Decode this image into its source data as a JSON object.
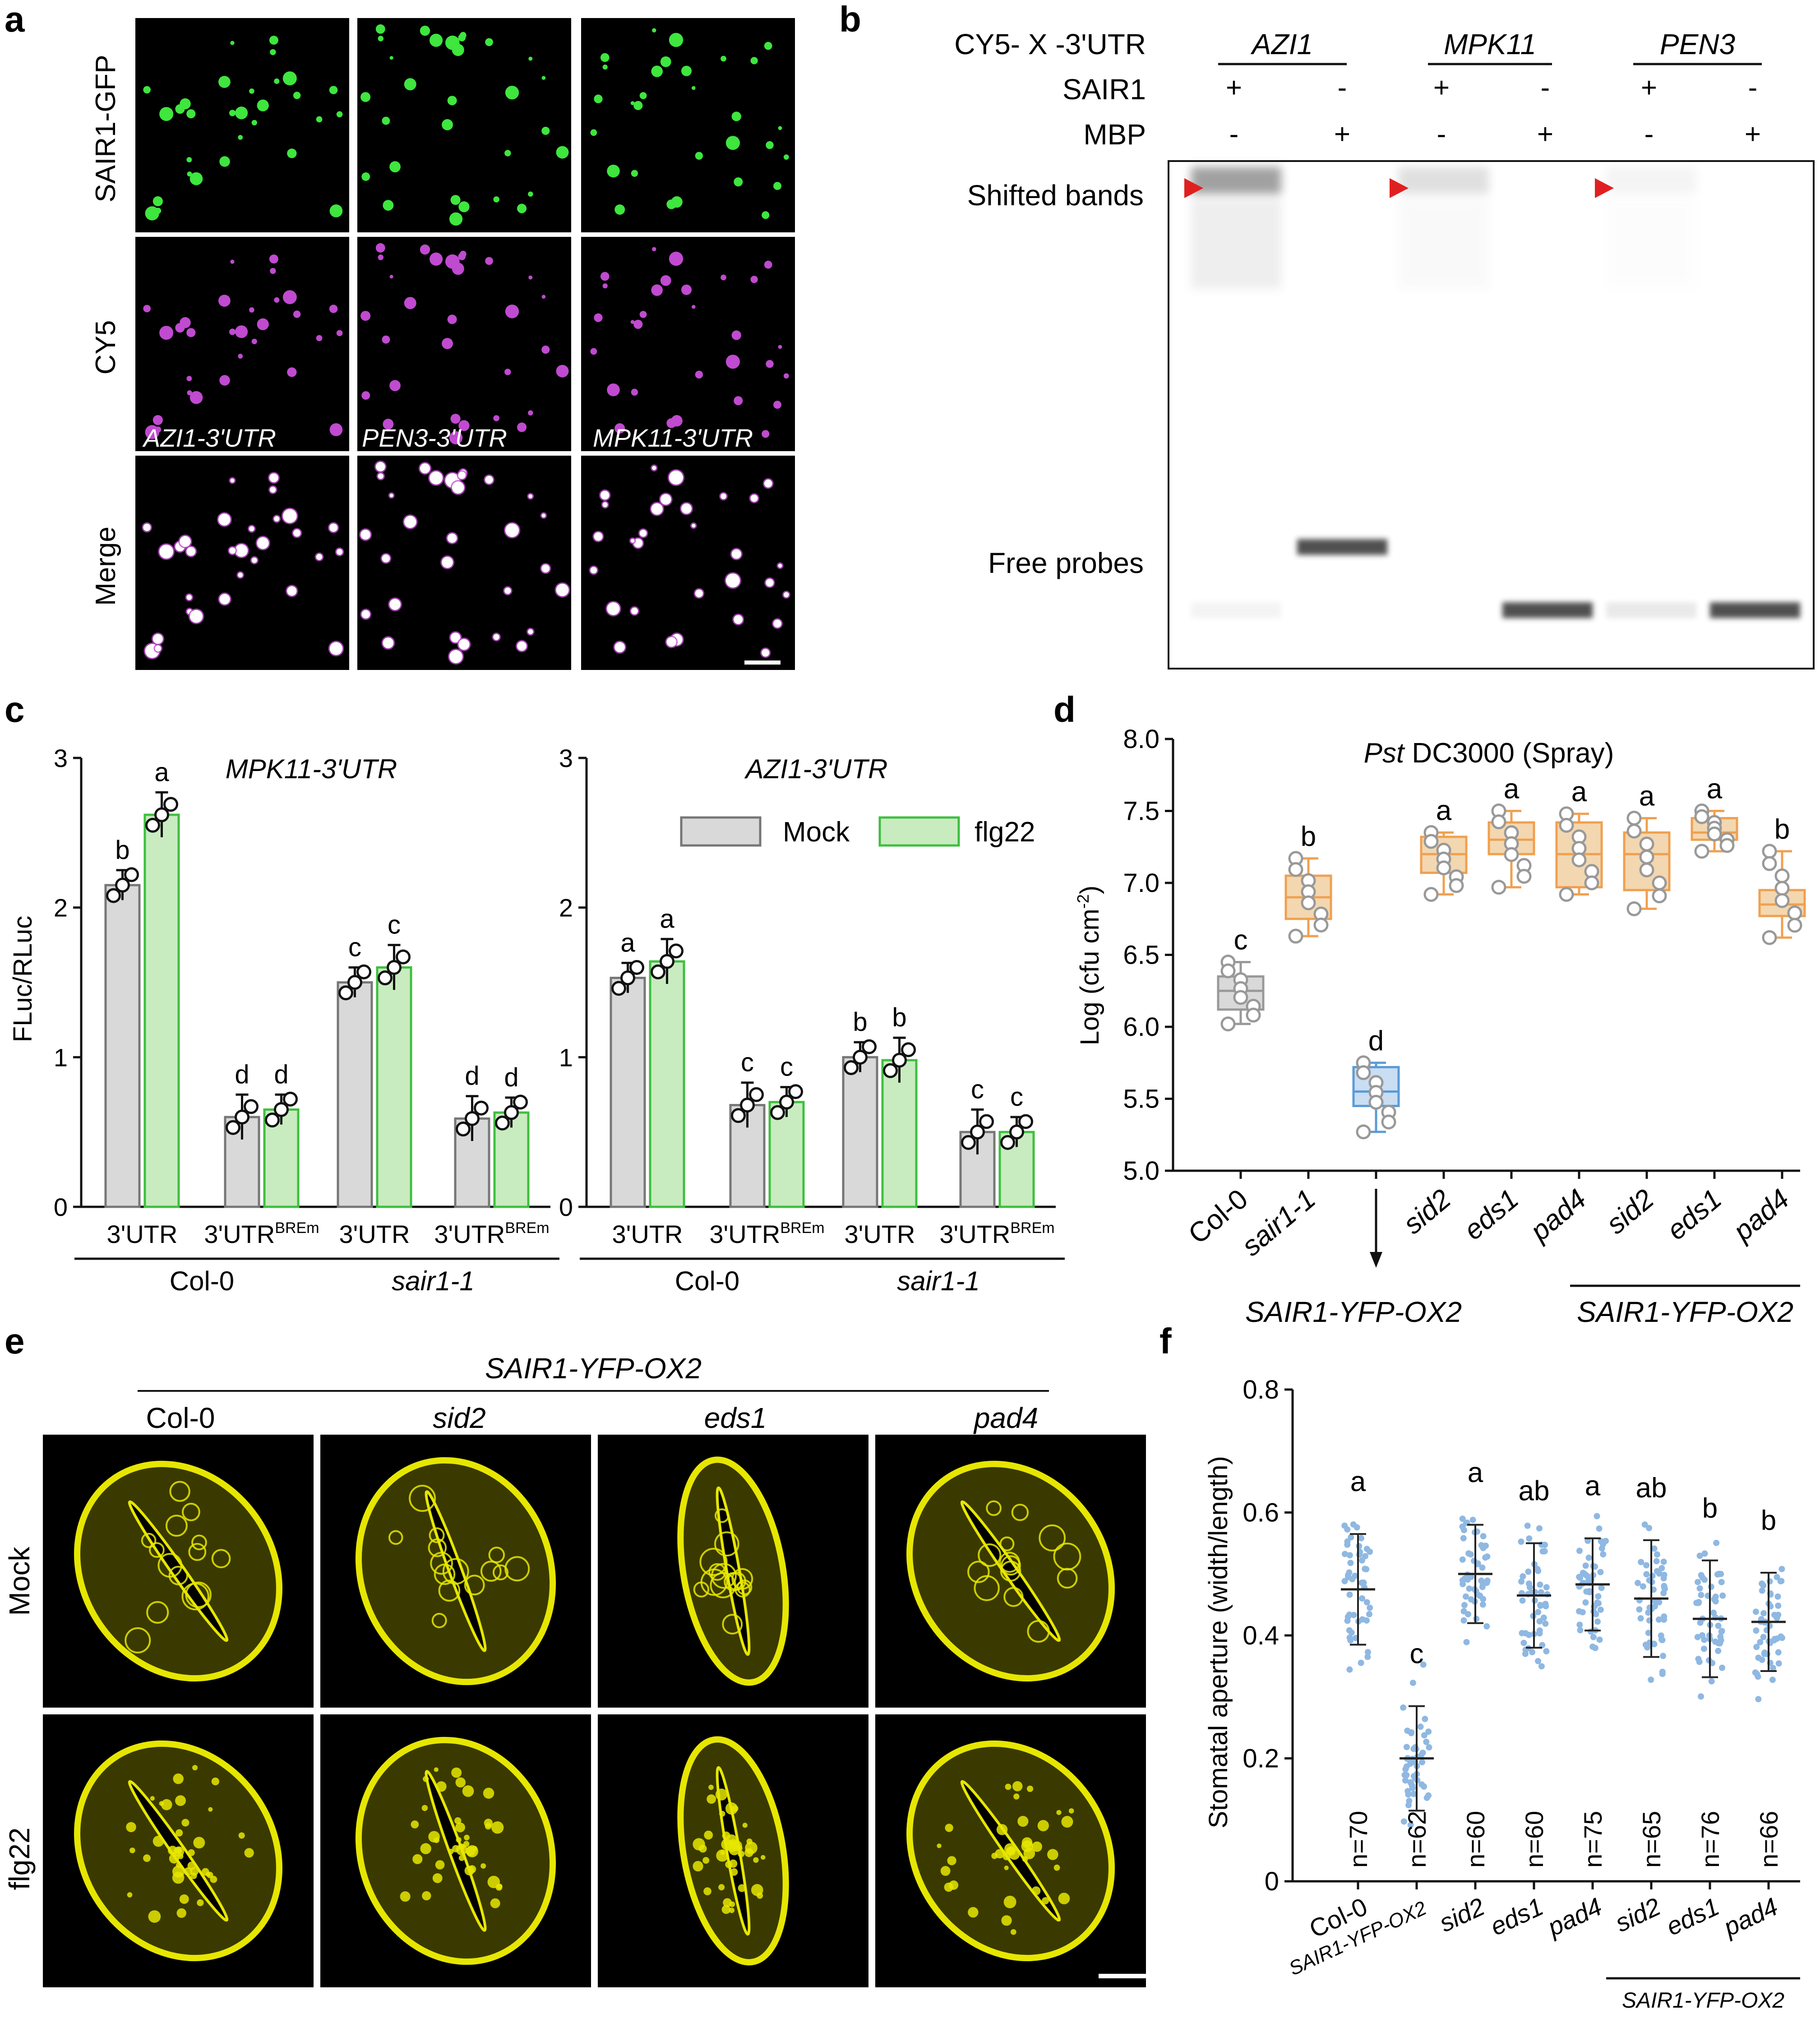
{
  "panel_letters": {
    "a": "a",
    "b": "b",
    "c": "c",
    "d": "d",
    "e": "e",
    "f": "f"
  },
  "colors": {
    "green": "#3ee63e",
    "magenta": "#c04ad0",
    "yellow": "#e6e600",
    "mock_bar": "#d9d9d9",
    "flg22_bar": "#c8ecc0",
    "flg22_edge": "#3fbf3f",
    "orange_box": "#f3d7b0",
    "orange_edge": "#f0a050",
    "blue_box": "#c9ddf3",
    "blue_point": "#8fb8e2",
    "arrow_red": "#e02020"
  },
  "panel_a": {
    "rows": [
      "SAIR1-GFP",
      "CY5",
      "Merge"
    ],
    "columns": [
      "AZI1-3'UTR",
      "PEN3-3'UTR",
      "MPK11-3'UTR"
    ]
  },
  "panel_b": {
    "header": "CY5- X -3'UTR",
    "genes": [
      "AZI1",
      "MPK11",
      "PEN3"
    ],
    "row_sair1": "SAIR1",
    "row_mbp": "MBP",
    "sair1_signs": [
      "+",
      "-",
      "+",
      "-",
      "+",
      "-"
    ],
    "mbp_signs": [
      "-",
      "+",
      "-",
      "+",
      "-",
      "+"
    ],
    "label_shifted": "Shifted bands",
    "label_free": "Free probes"
  },
  "panel_c": {
    "ylabel": "FLuc/RLuc",
    "legend": [
      "Mock",
      "flg22"
    ],
    "xcats": [
      "3'UTR",
      "3'UTR",
      "3'UTR",
      "3'UTR"
    ],
    "superscript": "BREm",
    "groups": [
      "Col-0",
      "sair1-1"
    ],
    "yticks": [
      "0",
      "1",
      "2",
      "3"
    ]
  },
  "chart_data": [
    {
      "type": "bar",
      "title": "MPK11-3'UTR",
      "ylabel": "FLuc/RLuc",
      "ylim": [
        0,
        3
      ],
      "categories": [
        "Col-0 3'UTR",
        "Col-0 3'UTR BREm",
        "sair1-1 3'UTR",
        "sair1-1 3'UTR BREm"
      ],
      "series": [
        {
          "name": "Mock",
          "values": [
            2.15,
            0.6,
            1.5,
            0.59
          ],
          "letters": [
            "b",
            "d",
            "c",
            "d"
          ]
        },
        {
          "name": "flg22",
          "values": [
            2.62,
            0.65,
            1.6,
            0.63
          ],
          "letters": [
            "a",
            "d",
            "c",
            "d"
          ]
        }
      ]
    },
    {
      "type": "bar",
      "title": "AZI1-3'UTR",
      "ylabel": "",
      "ylim": [
        0,
        3
      ],
      "categories": [
        "Col-0 3'UTR",
        "Col-0 3'UTR BREm",
        "sair1-1 3'UTR",
        "sair1-1 3'UTR BREm"
      ],
      "series": [
        {
          "name": "Mock",
          "values": [
            1.53,
            0.68,
            1.0,
            0.5
          ],
          "letters": [
            "a",
            "c",
            "b",
            "c"
          ]
        },
        {
          "name": "flg22",
          "values": [
            1.64,
            0.7,
            0.98,
            0.5
          ],
          "letters": [
            "a",
            "c",
            "b",
            "c"
          ]
        }
      ]
    },
    {
      "type": "box",
      "title": "Pst DC3000 (Spray)",
      "ylabel": "Log (cfu cm-2)",
      "ylim": [
        5.0,
        8.0
      ],
      "yticks": [
        "5.0",
        "5.5",
        "6.0",
        "6.5",
        "7.0",
        "7.5",
        "8.0"
      ],
      "categories": [
        "Col-0",
        "sair1-1",
        "SAIR1-YFP-OX2",
        "sid2",
        "eds1",
        "pad4",
        "sid2",
        "eds1",
        "pad4"
      ],
      "medians": [
        6.25,
        6.9,
        5.55,
        7.2,
        7.3,
        7.2,
        7.2,
        7.35,
        6.85
      ],
      "q1": [
        6.12,
        6.75,
        5.45,
        7.07,
        7.2,
        6.97,
        6.95,
        7.3,
        6.77
      ],
      "q3": [
        6.35,
        7.05,
        5.72,
        7.32,
        7.42,
        7.42,
        7.35,
        7.45,
        6.95
      ],
      "min": [
        6.02,
        6.63,
        5.27,
        6.92,
        6.97,
        6.92,
        6.82,
        7.22,
        6.62
      ],
      "max": [
        6.45,
        7.17,
        5.75,
        7.35,
        7.5,
        7.48,
        7.45,
        7.5,
        7.22
      ],
      "letters": [
        "c",
        "b",
        "d",
        "a",
        "a",
        "a",
        "a",
        "a",
        "b"
      ],
      "group_label_1": "SAIR1-YFP-OX2",
      "group_label_2": "SAIR1-YFP-OX2"
    },
    {
      "type": "scatter",
      "ylabel": "Stomatal aperture (width/length)",
      "ylim": [
        0,
        0.8
      ],
      "yticks": [
        "0",
        "0.2",
        "0.4",
        "0.6",
        "0.8"
      ],
      "categories": [
        "Col-0",
        "SAIR1-YFP-OX2",
        "sid2",
        "eds1",
        "pad4",
        "sid2",
        "eds1",
        "pad4"
      ],
      "means": [
        0.475,
        0.2,
        0.5,
        0.465,
        0.483,
        0.46,
        0.427,
        0.422
      ],
      "sd": [
        0.09,
        0.085,
        0.08,
        0.085,
        0.075,
        0.095,
        0.095,
        0.08
      ],
      "letters": [
        "a",
        "c",
        "a",
        "ab",
        "a",
        "ab",
        "b",
        "b"
      ],
      "n": [
        "n=70",
        "n=62",
        "n=60",
        "n=60",
        "n=75",
        "n=65",
        "n=76",
        "n=66"
      ],
      "group_label": "SAIR1-YFP-OX2"
    }
  ],
  "panel_e": {
    "header": "SAIR1-YFP-OX2",
    "columns": [
      "Col-0",
      "sid2",
      "eds1",
      "pad4"
    ],
    "rows": [
      "Mock",
      "flg22"
    ]
  }
}
